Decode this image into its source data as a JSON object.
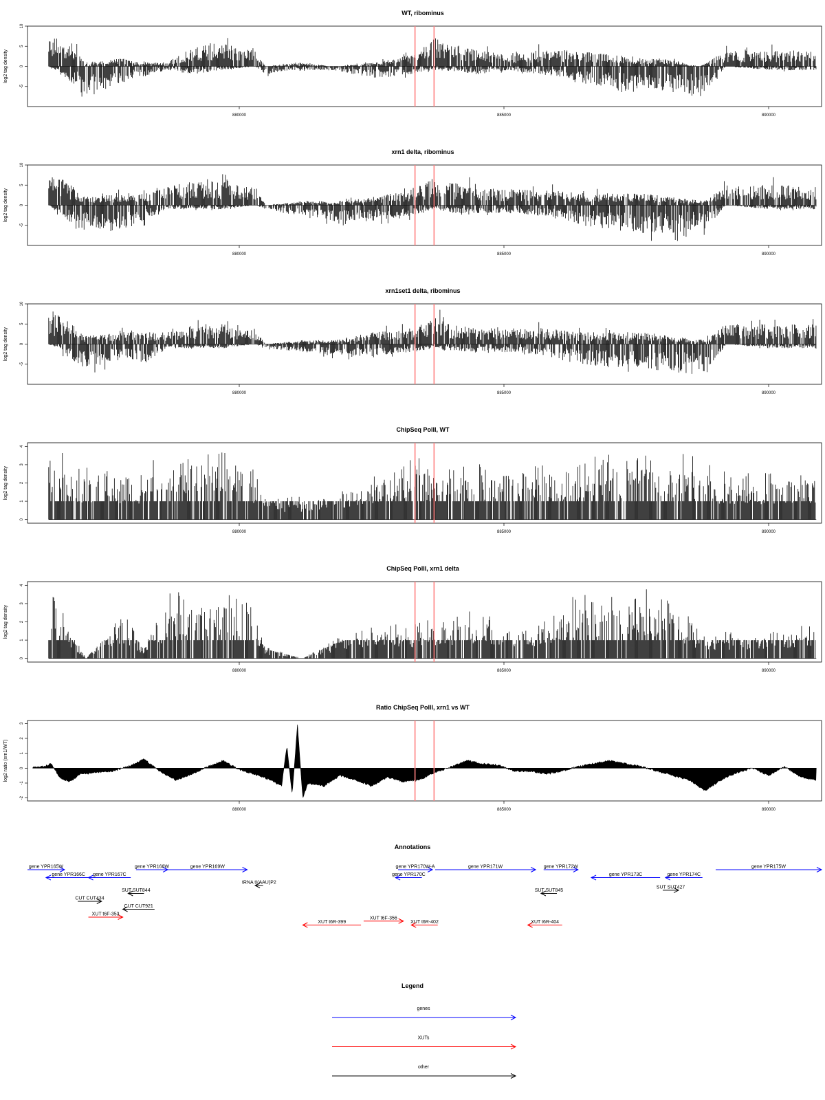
{
  "chart_data": [
    {
      "type": "bar",
      "title": "WT, ribominus",
      "ylabel": "log2 tag density",
      "ylim": [
        -10,
        10
      ],
      "yticks": [
        10,
        5,
        0,
        -5
      ],
      "xlim": [
        876000,
        891000
      ],
      "xticks": [
        "880000",
        "885000",
        "890000"
      ],
      "markers": [
        883320,
        883680
      ],
      "profile": [
        [
          876400,
          8,
          0
        ],
        [
          876950,
          4,
          -5
        ],
        [
          877100,
          1,
          -7
        ],
        [
          877800,
          2,
          -4
        ],
        [
          878100,
          1,
          -3
        ],
        [
          878600,
          1,
          -1
        ],
        [
          879200,
          5,
          -2
        ],
        [
          879700,
          6,
          -1
        ],
        [
          880300,
          4,
          0
        ],
        [
          880500,
          0,
          -2
        ],
        [
          881100,
          1,
          -1
        ],
        [
          881800,
          0,
          -1
        ],
        [
          882600,
          1,
          -3
        ],
        [
          883300,
          3,
          -2
        ],
        [
          883700,
          7,
          -1
        ],
        [
          883900,
          6,
          -1
        ],
        [
          884500,
          4,
          -2
        ],
        [
          885100,
          3,
          -1
        ],
        [
          885700,
          4,
          -2
        ],
        [
          886200,
          4,
          -3
        ],
        [
          887000,
          3,
          -6
        ],
        [
          887500,
          2,
          -7
        ],
        [
          888000,
          2,
          -6
        ],
        [
          888700,
          0,
          -8
        ],
        [
          889200,
          4,
          0
        ],
        [
          890000,
          4,
          -1
        ],
        [
          890900,
          4,
          -1
        ]
      ],
      "seed": 11
    },
    {
      "type": "bar",
      "title": "xrn1 delta, ribominus",
      "ylabel": "log2 tag density",
      "ylim": [
        -10,
        10
      ],
      "yticks": [
        10,
        5,
        0,
        -5
      ],
      "xlim": [
        876000,
        891000
      ],
      "xticks": [
        "880000",
        "885000",
        "890000"
      ],
      "markers": [
        883320,
        883680
      ],
      "profile": [
        [
          876400,
          8,
          0
        ],
        [
          876950,
          4,
          -6
        ],
        [
          877100,
          2,
          -7
        ],
        [
          877900,
          3,
          -6
        ],
        [
          878200,
          3,
          -4
        ],
        [
          878600,
          5,
          -1
        ],
        [
          879200,
          6,
          -1
        ],
        [
          879700,
          6,
          -1
        ],
        [
          880300,
          5,
          0
        ],
        [
          880500,
          0,
          -1
        ],
        [
          881200,
          1,
          -3
        ],
        [
          881800,
          1,
          -4
        ],
        [
          882500,
          2,
          -4
        ],
        [
          883300,
          4,
          -3
        ],
        [
          883700,
          7,
          -1
        ],
        [
          884000,
          6,
          -2
        ],
        [
          884700,
          4,
          -2
        ],
        [
          885300,
          4,
          -2
        ],
        [
          885800,
          4,
          -3
        ],
        [
          886400,
          3,
          -5
        ],
        [
          887000,
          3,
          -6
        ],
        [
          887600,
          3,
          -7
        ],
        [
          888200,
          2,
          -7
        ],
        [
          888800,
          1,
          -6
        ],
        [
          889200,
          5,
          0
        ],
        [
          890000,
          5,
          -1
        ],
        [
          890900,
          5,
          -1
        ]
      ],
      "seed": 23
    },
    {
      "type": "bar",
      "title": "xrn1set1 delta, ribominus",
      "ylabel": "log2 tag density",
      "ylim": [
        -10,
        10
      ],
      "yticks": [
        10,
        5,
        0,
        -5
      ],
      "xlim": [
        876000,
        891000
      ],
      "xticks": [
        "880000",
        "885000",
        "890000"
      ],
      "markers": [
        883320,
        883680
      ],
      "profile": [
        [
          876400,
          9,
          0
        ],
        [
          876950,
          4,
          -5
        ],
        [
          877100,
          2,
          -6
        ],
        [
          877800,
          3,
          -4
        ],
        [
          878200,
          3,
          -5
        ],
        [
          878700,
          3,
          -1
        ],
        [
          879200,
          5,
          -1
        ],
        [
          879700,
          5,
          -1
        ],
        [
          880300,
          4,
          0
        ],
        [
          880500,
          0,
          -1
        ],
        [
          881200,
          1,
          -2
        ],
        [
          881800,
          1,
          -3
        ],
        [
          882500,
          3,
          -3
        ],
        [
          883300,
          4,
          -2
        ],
        [
          883700,
          7,
          -1
        ],
        [
          884000,
          5,
          -2
        ],
        [
          884700,
          4,
          -2
        ],
        [
          885300,
          4,
          -2
        ],
        [
          885800,
          4,
          -3
        ],
        [
          886400,
          3,
          -5
        ],
        [
          887000,
          3,
          -6
        ],
        [
          887600,
          3,
          -6
        ],
        [
          888200,
          2,
          -7
        ],
        [
          888800,
          1,
          -8
        ],
        [
          889200,
          5,
          0
        ],
        [
          890000,
          5,
          -1
        ],
        [
          890900,
          5,
          -1
        ]
      ],
      "seed": 37
    },
    {
      "type": "bar",
      "title": "ChipSeq PolII, WT",
      "ylabel": "log2 tag density",
      "ylim": [
        -0.2,
        4.2
      ],
      "yticks": [
        4,
        3,
        2,
        1,
        0
      ],
      "xlim": [
        876000,
        891000
      ],
      "xticks": [
        "880000",
        "885000",
        "890000"
      ],
      "markers": [
        883320,
        883680
      ],
      "profile": [
        [
          876400,
          3.4,
          0
        ],
        [
          876950,
          2.3,
          0
        ],
        [
          877800,
          2,
          0
        ],
        [
          878200,
          2.2,
          0
        ],
        [
          878700,
          3.5,
          0
        ],
        [
          879200,
          3.2,
          0
        ],
        [
          879700,
          3.0,
          0
        ],
        [
          880100,
          3.0,
          0
        ],
        [
          880500,
          1.0,
          0
        ],
        [
          881100,
          1,
          0
        ],
        [
          881600,
          1.2,
          0
        ],
        [
          882200,
          1.6,
          0
        ],
        [
          882700,
          2.2,
          0
        ],
        [
          883300,
          2.6,
          0
        ],
        [
          883700,
          2.6,
          0
        ],
        [
          884400,
          2.4,
          0
        ],
        [
          885200,
          2.6,
          0
        ],
        [
          885800,
          2.5,
          0
        ],
        [
          886200,
          2.2,
          0
        ],
        [
          886800,
          2.8,
          0
        ],
        [
          887400,
          2.8,
          0
        ],
        [
          888000,
          3.0,
          0
        ],
        [
          888600,
          2.7,
          0
        ],
        [
          889200,
          2.0,
          0
        ],
        [
          890000,
          2.0,
          0
        ],
        [
          890900,
          2.2,
          0
        ]
      ],
      "seed": 51
    },
    {
      "type": "bar",
      "title": "ChipSeq PolII, xrn1 delta",
      "ylabel": "log2 tag density",
      "ylim": [
        -0.2,
        4.2
      ],
      "yticks": [
        4,
        3,
        2,
        1,
        0
      ],
      "xlim": [
        876000,
        891000
      ],
      "xticks": [
        "880000",
        "885000",
        "890000"
      ],
      "markers": [
        883320,
        883680
      ],
      "profile": [
        [
          876400,
          3.0,
          0
        ],
        [
          876950,
          0.8,
          0
        ],
        [
          877100,
          0,
          0
        ],
        [
          877800,
          2.1,
          0
        ],
        [
          878200,
          0.5,
          0
        ],
        [
          878700,
          2.8,
          0
        ],
        [
          879200,
          2.8,
          0
        ],
        [
          879700,
          3.0,
          0
        ],
        [
          880200,
          2.5,
          0
        ],
        [
          880500,
          0.5,
          0
        ],
        [
          881200,
          0,
          0
        ],
        [
          881800,
          0.8,
          0
        ],
        [
          882500,
          1.5,
          0
        ],
        [
          883300,
          1.5,
          0
        ],
        [
          883700,
          1.7,
          0
        ],
        [
          884400,
          2.0,
          0
        ],
        [
          885200,
          1.6,
          0
        ],
        [
          885800,
          1.6,
          0
        ],
        [
          886400,
          2.8,
          0
        ],
        [
          887000,
          3.0,
          0
        ],
        [
          887600,
          3.0,
          0
        ],
        [
          888200,
          2.6,
          0
        ],
        [
          888800,
          1.0,
          0
        ],
        [
          889200,
          1.2,
          0
        ],
        [
          890000,
          1.2,
          0
        ],
        [
          890900,
          1.5,
          0
        ]
      ],
      "seed": 67
    },
    {
      "type": "area",
      "title": "Ratio ChipSeq PolII, xrn1 vs WT",
      "ylabel": "log2 ratio (xrn1/WT)",
      "ylim": [
        -2.2,
        3.2
      ],
      "yticks": [
        3,
        2,
        1,
        0,
        -1,
        -2
      ],
      "xlim": [
        876000,
        891000
      ],
      "xticks": [
        "880000",
        "885000",
        "890000"
      ],
      "markers": [
        883320,
        883680
      ],
      "points": [
        [
          876100,
          0.05
        ],
        [
          876300,
          0.1
        ],
        [
          876450,
          0.3
        ],
        [
          876600,
          -0.6
        ],
        [
          876800,
          -0.9
        ],
        [
          877000,
          -0.4
        ],
        [
          877300,
          -0.3
        ],
        [
          877600,
          -0.2
        ],
        [
          877900,
          0.1
        ],
        [
          878200,
          0.6
        ],
        [
          878500,
          -0.2
        ],
        [
          878800,
          -0.8
        ],
        [
          879100,
          -0.4
        ],
        [
          879400,
          0.1
        ],
        [
          879700,
          0.5
        ],
        [
          880000,
          -0.1
        ],
        [
          880300,
          -0.4
        ],
        [
          880600,
          -0.8
        ],
        [
          880800,
          -1.2
        ],
        [
          880900,
          1.5
        ],
        [
          881000,
          -1.8
        ],
        [
          881100,
          2.9
        ],
        [
          881200,
          -2.0
        ],
        [
          881300,
          -1.0
        ],
        [
          881600,
          -1.2
        ],
        [
          881900,
          -0.5
        ],
        [
          882200,
          -0.8
        ],
        [
          882500,
          -1.2
        ],
        [
          882800,
          -0.6
        ],
        [
          883100,
          -0.9
        ],
        [
          883400,
          -0.8
        ],
        [
          883700,
          -0.3
        ],
        [
          884000,
          0.1
        ],
        [
          884300,
          0.5
        ],
        [
          884600,
          0.3
        ],
        [
          884900,
          0.2
        ],
        [
          885200,
          -0.2
        ],
        [
          885500,
          -0.2
        ],
        [
          885800,
          -0.4
        ],
        [
          886100,
          -0.2
        ],
        [
          886400,
          0.1
        ],
        [
          886700,
          0.3
        ],
        [
          887000,
          0.5
        ],
        [
          887300,
          0.3
        ],
        [
          887600,
          0.1
        ],
        [
          887900,
          -0.2
        ],
        [
          888200,
          -0.5
        ],
        [
          888500,
          -0.8
        ],
        [
          888800,
          -1.5
        ],
        [
          889100,
          -0.8
        ],
        [
          889400,
          -0.3
        ],
        [
          889700,
          0.0
        ],
        [
          890000,
          -0.5
        ],
        [
          890300,
          0.1
        ],
        [
          890600,
          -0.6
        ],
        [
          890900,
          -0.8
        ]
      ],
      "seed": 83
    }
  ],
  "annotations": {
    "title": "Annotations",
    "xlim": [
      876000,
      891000
    ],
    "items": [
      {
        "label": "gene YPR165W",
        "start": 876000,
        "end": 876700,
        "row": 0,
        "kind": "gene",
        "dir": "+"
      },
      {
        "label": "gene YPR166C",
        "start": 876350,
        "end": 877200,
        "row": 1,
        "kind": "gene",
        "dir": "-"
      },
      {
        "label": "gene YPR167C",
        "start": 877150,
        "end": 877950,
        "row": 1,
        "kind": "gene",
        "dir": "-"
      },
      {
        "label": "gene YPR168W",
        "start": 878050,
        "end": 878650,
        "row": 0,
        "kind": "gene",
        "dir": "+"
      },
      {
        "label": "gene YPR169W",
        "start": 878650,
        "end": 880150,
        "row": 0,
        "kind": "gene",
        "dir": "+"
      },
      {
        "label": "tRNA tI(AAU)P2",
        "start": 880300,
        "end": 880450,
        "row": 2,
        "kind": "other",
        "dir": "-"
      },
      {
        "label": "gene YPR170W-A",
        "start": 883000,
        "end": 883650,
        "row": 0,
        "kind": "gene",
        "dir": "+"
      },
      {
        "label": "gene YPR170C",
        "start": 882950,
        "end": 883450,
        "row": 1,
        "kind": "gene",
        "dir": "-"
      },
      {
        "label": "gene YPR171W",
        "start": 883700,
        "end": 885600,
        "row": 0,
        "kind": "gene",
        "dir": "+"
      },
      {
        "label": "gene YPR172W",
        "start": 885750,
        "end": 886400,
        "row": 0,
        "kind": "gene",
        "dir": "+"
      },
      {
        "label": "gene YPR173C",
        "start": 886650,
        "end": 887950,
        "row": 1,
        "kind": "gene",
        "dir": "-"
      },
      {
        "label": "gene YPR174C",
        "start": 888050,
        "end": 888750,
        "row": 1,
        "kind": "gene",
        "dir": "-"
      },
      {
        "label": "gene YPR175W",
        "start": 889000,
        "end": 891000,
        "row": 0,
        "kind": "gene",
        "dir": "+"
      },
      {
        "label": "SUT SUT844",
        "start": 877900,
        "end": 878200,
        "row": 3,
        "kind": "other",
        "dir": "-"
      },
      {
        "label": "CUT CUT434",
        "start": 876950,
        "end": 877400,
        "row": 4,
        "kind": "other",
        "dir": "+"
      },
      {
        "label": "CUT CUT921",
        "start": 877800,
        "end": 878400,
        "row": 5,
        "kind": "other",
        "dir": "-"
      },
      {
        "label": "SUT SUT845",
        "start": 885700,
        "end": 886000,
        "row": 3,
        "kind": "other",
        "dir": "-"
      },
      {
        "label": "SUT SUT427",
        "start": 888000,
        "end": 888300,
        "row": 2.6,
        "kind": "other",
        "dir": "+"
      },
      {
        "label": "XUT t6F-353",
        "start": 877150,
        "end": 877800,
        "row": 6,
        "kind": "xut",
        "dir": "+"
      },
      {
        "label": "XUT t6R-399",
        "start": 881200,
        "end": 882300,
        "row": 7,
        "kind": "xut",
        "dir": "-"
      },
      {
        "label": "XUT t6F-356",
        "start": 882350,
        "end": 883100,
        "row": 6.5,
        "kind": "xut",
        "dir": "+"
      },
      {
        "label": "XUT t6R-402",
        "start": 883250,
        "end": 883750,
        "row": 7,
        "kind": "xut",
        "dir": "-"
      },
      {
        "label": "XUT t6R-404",
        "start": 885450,
        "end": 886100,
        "row": 7,
        "kind": "xut",
        "dir": "-"
      }
    ]
  },
  "legend": {
    "title": "Legend",
    "entries": [
      {
        "label": "genes",
        "color": "#0000ff"
      },
      {
        "label": "XUTs",
        "color": "#ff0000"
      },
      {
        "label": "other",
        "color": "#000000"
      }
    ]
  },
  "colors": {
    "gene": "#0000ff",
    "xut": "#ff0000",
    "other": "#000000",
    "marker": "#ff8080"
  }
}
